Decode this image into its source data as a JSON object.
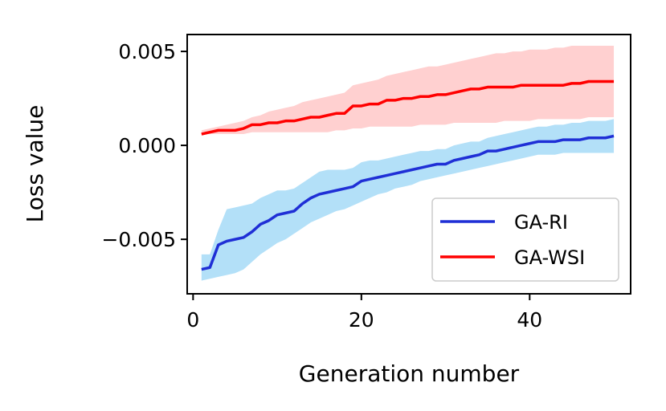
{
  "chart_data": {
    "type": "line",
    "title": "",
    "xlabel": "Generation number",
    "ylabel": "Loss value",
    "xlim": [
      -0.7,
      52.0
    ],
    "ylim": [
      -0.0079,
      0.0059
    ],
    "xticks": [
      0,
      20,
      40
    ],
    "xtick_labels": [
      "0",
      "20",
      "40"
    ],
    "yticks": [
      -0.005,
      0.0,
      0.005
    ],
    "ytick_labels": [
      "−0.005",
      "0.000",
      "0.005"
    ],
    "grid": false,
    "legend_position": "lower-right",
    "x": [
      1,
      2,
      3,
      4,
      5,
      6,
      7,
      8,
      9,
      10,
      11,
      12,
      13,
      14,
      15,
      16,
      17,
      18,
      19,
      20,
      21,
      22,
      23,
      24,
      25,
      26,
      27,
      28,
      29,
      30,
      31,
      32,
      33,
      34,
      35,
      36,
      37,
      38,
      39,
      40,
      41,
      42,
      43,
      44,
      45,
      46,
      47,
      48,
      49,
      50
    ],
    "series": [
      {
        "name": "GA-RI",
        "color": "#1f2fd6",
        "band_color": "#b3e0f8",
        "values": [
          -0.0066,
          -0.0065,
          -0.0053,
          -0.0051,
          -0.005,
          -0.0049,
          -0.0046,
          -0.0042,
          -0.004,
          -0.0037,
          -0.0036,
          -0.0035,
          -0.0031,
          -0.0028,
          -0.0026,
          -0.0025,
          -0.0024,
          -0.0023,
          -0.0022,
          -0.0019,
          -0.0018,
          -0.0017,
          -0.0016,
          -0.0015,
          -0.0014,
          -0.0013,
          -0.0012,
          -0.0011,
          -0.001,
          -0.001,
          -0.0008,
          -0.0007,
          -0.0006,
          -0.0005,
          -0.0003,
          -0.0003,
          -0.0002,
          -0.0001,
          0.0,
          0.0001,
          0.0002,
          0.0002,
          0.0002,
          0.0003,
          0.0003,
          0.0003,
          0.0004,
          0.0004,
          0.0004,
          0.0005
        ],
        "lower": [
          -0.0072,
          -0.0071,
          -0.007,
          -0.0069,
          -0.0068,
          -0.0066,
          -0.0062,
          -0.0058,
          -0.0055,
          -0.0052,
          -0.005,
          -0.0047,
          -0.0044,
          -0.0041,
          -0.0039,
          -0.0037,
          -0.0035,
          -0.0034,
          -0.0032,
          -0.003,
          -0.0028,
          -0.0026,
          -0.0025,
          -0.0023,
          -0.0022,
          -0.0021,
          -0.0019,
          -0.0018,
          -0.0017,
          -0.0016,
          -0.0015,
          -0.0014,
          -0.0013,
          -0.0012,
          -0.0011,
          -0.001,
          -0.0009,
          -0.0008,
          -0.0007,
          -0.0006,
          -0.0005,
          -0.0005,
          -0.0005,
          -0.0004,
          -0.0004,
          -0.0004,
          -0.0004,
          -0.0004,
          -0.0004,
          -0.0004
        ],
        "upper": [
          -0.0058,
          -0.0058,
          -0.0045,
          -0.0034,
          -0.0033,
          -0.0032,
          -0.0031,
          -0.0028,
          -0.0026,
          -0.0024,
          -0.0024,
          -0.0023,
          -0.002,
          -0.0017,
          -0.0014,
          -0.0013,
          -0.0013,
          -0.0013,
          -0.0012,
          -0.0009,
          -0.0008,
          -0.0008,
          -0.0007,
          -0.0006,
          -0.0005,
          -0.0004,
          -0.0003,
          -0.0003,
          -0.0002,
          -0.0002,
          0.0,
          0.0001,
          0.0002,
          0.0002,
          0.0004,
          0.0005,
          0.0006,
          0.0007,
          0.0008,
          0.0009,
          0.001,
          0.001,
          0.0011,
          0.0011,
          0.0012,
          0.0012,
          0.0013,
          0.0013,
          0.0013,
          0.0014
        ]
      },
      {
        "name": "GA-WSI",
        "color": "#ff0000",
        "band_color": "#ffd0d0",
        "values": [
          0.0006,
          0.0007,
          0.0008,
          0.0008,
          0.0008,
          0.0009,
          0.0011,
          0.0011,
          0.0012,
          0.0012,
          0.0013,
          0.0013,
          0.0014,
          0.0015,
          0.0015,
          0.0016,
          0.0017,
          0.0017,
          0.0021,
          0.0021,
          0.0022,
          0.0022,
          0.0024,
          0.0024,
          0.0025,
          0.0025,
          0.0026,
          0.0026,
          0.0027,
          0.0027,
          0.0028,
          0.0029,
          0.003,
          0.003,
          0.0031,
          0.0031,
          0.0031,
          0.0031,
          0.0032,
          0.0032,
          0.0032,
          0.0032,
          0.0032,
          0.0032,
          0.0033,
          0.0033,
          0.0034,
          0.0034,
          0.0034,
          0.0034
        ],
        "lower": [
          0.0006,
          0.0006,
          0.0006,
          0.0006,
          0.0006,
          0.0006,
          0.0007,
          0.0007,
          0.0007,
          0.0007,
          0.0007,
          0.0007,
          0.0007,
          0.0007,
          0.0007,
          0.0007,
          0.0008,
          0.0008,
          0.0009,
          0.0009,
          0.001,
          0.001,
          0.001,
          0.001,
          0.001,
          0.001,
          0.0011,
          0.0011,
          0.0011,
          0.0011,
          0.0012,
          0.0012,
          0.0012,
          0.0012,
          0.0012,
          0.0012,
          0.0013,
          0.0013,
          0.0013,
          0.0013,
          0.0014,
          0.0014,
          0.0014,
          0.0014,
          0.0014,
          0.0014,
          0.0015,
          0.0015,
          0.0015,
          0.0015
        ],
        "upper": [
          0.0008,
          0.0009,
          0.001,
          0.0011,
          0.0012,
          0.0013,
          0.0015,
          0.0016,
          0.0018,
          0.0019,
          0.002,
          0.0021,
          0.0023,
          0.0024,
          0.0025,
          0.0026,
          0.0027,
          0.0028,
          0.0032,
          0.0033,
          0.0034,
          0.0035,
          0.0037,
          0.0038,
          0.0039,
          0.004,
          0.0041,
          0.0042,
          0.0042,
          0.0043,
          0.0044,
          0.0045,
          0.0046,
          0.0047,
          0.0048,
          0.0049,
          0.0049,
          0.005,
          0.005,
          0.0051,
          0.0051,
          0.0051,
          0.0052,
          0.0052,
          0.0053,
          0.0053,
          0.0053,
          0.0053,
          0.0053,
          0.0053
        ]
      }
    ]
  }
}
